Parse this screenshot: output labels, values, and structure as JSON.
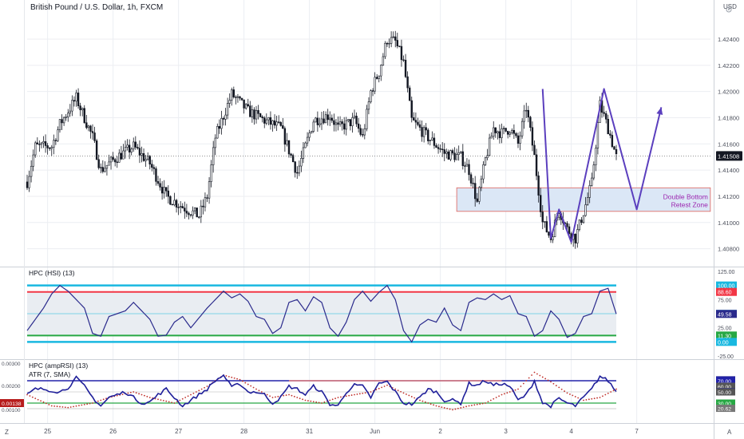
{
  "header": {
    "symbol_title": "British Pound / U.S. Dollar, 1h, FXCM",
    "currency": "USD",
    "corner_letter": "A",
    "left_letter": "Z"
  },
  "annotation": {
    "line1": "Double Bottom",
    "line2": "Retest Zone"
  },
  "colors": {
    "candle": "#131722",
    "bg": "#ffffff",
    "grid": "#eceef2",
    "axis_text": "#4a4e5a",
    "pattern_line": "#5b3fbe",
    "zone_fill": "#dbe7f6",
    "zone_border": "#e0615a",
    "annotation_text": "#9c27b0",
    "hsi_line": "#2a2a8c",
    "hsi_band_outer": "#19b8e0",
    "hsi_band_upper": "#f23645",
    "hsi_band_lower": "#27a844",
    "hsi_mid": "#7fd3e6",
    "amp_line": "#1f1f9a",
    "atr_dots": "#c0302a",
    "last_price_bg": "#131722"
  },
  "chart_data": [
    {
      "id": "price",
      "type": "candlestick",
      "title": "British Pound / U.S. Dollar, 1h, FXCM",
      "ylabel": "USD",
      "x_labels": [
        "25",
        "26",
        "27",
        "28",
        "31",
        "Jun",
        "2",
        "3",
        "4",
        "7"
      ],
      "x_label_pos": [
        2.5,
        10.5,
        18.5,
        26.5,
        34.5,
        42.5,
        50.5,
        58.5,
        66.5,
        74.5
      ],
      "ylim": [
        1.407,
        1.4265
      ],
      "y_ticks": [
        "1.42400",
        "1.42200",
        "1.42000",
        "1.41800",
        "1.41600",
        "1.41400",
        "1.41200",
        "1.41000",
        "1.40800"
      ],
      "last_price": "1.41508",
      "anchors": [
        [
          0,
          1.4131
        ],
        [
          1,
          1.4158
        ],
        [
          3,
          1.4158
        ],
        [
          4,
          1.4175
        ],
        [
          6,
          1.4195
        ],
        [
          8,
          1.4165
        ],
        [
          9,
          1.414
        ],
        [
          11,
          1.415
        ],
        [
          13,
          1.4158
        ],
        [
          15,
          1.4145
        ],
        [
          17,
          1.412
        ],
        [
          19,
          1.4112
        ],
        [
          21,
          1.4105
        ],
        [
          22,
          1.412
        ],
        [
          23,
          1.4165
        ],
        [
          25,
          1.4198
        ],
        [
          27,
          1.4185
        ],
        [
          29,
          1.4178
        ],
        [
          31,
          1.4172
        ],
        [
          32,
          1.4155
        ],
        [
          33,
          1.4138
        ],
        [
          35,
          1.4178
        ],
        [
          37,
          1.4182
        ],
        [
          38,
          1.4172
        ],
        [
          40,
          1.4178
        ],
        [
          41,
          1.4165
        ],
        [
          42,
          1.42
        ],
        [
          43,
          1.4215
        ],
        [
          44,
          1.424
        ],
        [
          45,
          1.4238
        ],
        [
          46,
          1.4222
        ],
        [
          47,
          1.4178
        ],
        [
          49,
          1.4165
        ],
        [
          51,
          1.4153
        ],
        [
          53,
          1.415
        ],
        [
          54,
          1.414
        ],
        [
          55,
          1.4115
        ],
        [
          56,
          1.4148
        ],
        [
          57,
          1.4172
        ],
        [
          58,
          1.4168
        ],
        [
          59,
          1.4172
        ],
        [
          60,
          1.416
        ],
        [
          61,
          1.4188
        ],
        [
          62,
          1.415
        ],
        [
          63,
          1.41
        ],
        [
          64,
          1.4088
        ],
        [
          65,
          1.411
        ],
        [
          66,
          1.4095
        ],
        [
          67,
          1.4088
        ],
        [
          68,
          1.4108
        ],
        [
          69,
          1.413
        ],
        [
          70,
          1.419
        ],
        [
          71,
          1.4172
        ],
        [
          72,
          1.415
        ]
      ]
    },
    {
      "id": "hsi",
      "type": "line",
      "title": "HPC (HSI) (13)",
      "ylim": [
        -25,
        125
      ],
      "y_ticks": [
        "125.00",
        "75.00",
        "25.00",
        "-25.00"
      ],
      "bands": {
        "outer_top": 100,
        "upper": 88.6,
        "mid": 50,
        "lower": 11.3,
        "outer_bottom": 0
      },
      "badges": [
        {
          "label": "100.00",
          "value": 100
        },
        {
          "label": "88.60",
          "value": 88.6
        },
        {
          "label": "50.00",
          "value": 50
        },
        {
          "label": "49.58",
          "value": 49.58
        },
        {
          "label": "11.30",
          "value": 11.3
        },
        {
          "label": "0.00",
          "value": 0
        }
      ],
      "anchors": [
        [
          0,
          20
        ],
        [
          2,
          60
        ],
        [
          3,
          85
        ],
        [
          4,
          100
        ],
        [
          5,
          90
        ],
        [
          7,
          60
        ],
        [
          8,
          15
        ],
        [
          9,
          10
        ],
        [
          10,
          45
        ],
        [
          12,
          55
        ],
        [
          13,
          70
        ],
        [
          14,
          55
        ],
        [
          15,
          40
        ],
        [
          16,
          10
        ],
        [
          17,
          12
        ],
        [
          18,
          35
        ],
        [
          19,
          45
        ],
        [
          20,
          25
        ],
        [
          22,
          60
        ],
        [
          24,
          90
        ],
        [
          25,
          78
        ],
        [
          26,
          85
        ],
        [
          27,
          72
        ],
        [
          28,
          45
        ],
        [
          29,
          40
        ],
        [
          30,
          15
        ],
        [
          31,
          25
        ],
        [
          32,
          70
        ],
        [
          33,
          75
        ],
        [
          34,
          55
        ],
        [
          35,
          80
        ],
        [
          36,
          70
        ],
        [
          37,
          25
        ],
        [
          38,
          10
        ],
        [
          39,
          35
        ],
        [
          40,
          75
        ],
        [
          41,
          90
        ],
        [
          42,
          72
        ],
        [
          43,
          88
        ],
        [
          44,
          100
        ],
        [
          45,
          75
        ],
        [
          46,
          20
        ],
        [
          47,
          0
        ],
        [
          48,
          30
        ],
        [
          49,
          40
        ],
        [
          50,
          35
        ],
        [
          51,
          60
        ],
        [
          52,
          30
        ],
        [
          53,
          20
        ],
        [
          54,
          70
        ],
        [
          55,
          78
        ],
        [
          56,
          75
        ],
        [
          57,
          85
        ],
        [
          58,
          75
        ],
        [
          59,
          82
        ],
        [
          60,
          50
        ],
        [
          61,
          45
        ],
        [
          62,
          10
        ],
        [
          63,
          20
        ],
        [
          64,
          55
        ],
        [
          65,
          40
        ],
        [
          66,
          8
        ],
        [
          67,
          15
        ],
        [
          68,
          45
        ],
        [
          69,
          50
        ],
        [
          70,
          90
        ],
        [
          71,
          95
        ],
        [
          72,
          49.58
        ]
      ]
    },
    {
      "id": "amprsi",
      "type": "line",
      "title": "HPC (ampRSI) (13)",
      "subtitle": "ATR (7, SMA)",
      "ylim": [
        0,
        100
      ],
      "left_ticks": [
        "0.00300",
        "0.00200",
        "0.00100"
      ],
      "atr_badge": "0.00138",
      "bands": {
        "upper": 70,
        "lower": 30,
        "extra_lower": 20
      },
      "badges": [
        {
          "label": "71.59",
          "value": 71.59
        },
        {
          "label": "70.00",
          "value": 70
        },
        {
          "label": "60.00",
          "value": 60
        },
        {
          "label": "50.54",
          "value": 50.54
        },
        {
          "label": "50.00",
          "value": 50
        },
        {
          "label": "30.00",
          "value": 30
        },
        {
          "label": "20.62",
          "value": 20.62
        }
      ],
      "rsi_anchors": [
        [
          0,
          45
        ],
        [
          1,
          55
        ],
        [
          2,
          55
        ],
        [
          4,
          50
        ],
        [
          5,
          58
        ],
        [
          6,
          75
        ],
        [
          7,
          60
        ],
        [
          8,
          40
        ],
        [
          9,
          25
        ],
        [
          10,
          40
        ],
        [
          12,
          50
        ],
        [
          13,
          40
        ],
        [
          14,
          30
        ],
        [
          15,
          32
        ],
        [
          16,
          45
        ],
        [
          17,
          55
        ],
        [
          18,
          40
        ],
        [
          19,
          25
        ],
        [
          20,
          35
        ],
        [
          21,
          45
        ],
        [
          22,
          55
        ],
        [
          23,
          70
        ],
        [
          24,
          80
        ],
        [
          25,
          58
        ],
        [
          26,
          65
        ],
        [
          27,
          50
        ],
        [
          28,
          50
        ],
        [
          29,
          45
        ],
        [
          30,
          30
        ],
        [
          31,
          40
        ],
        [
          32,
          60
        ],
        [
          33,
          55
        ],
        [
          34,
          45
        ],
        [
          35,
          60
        ],
        [
          36,
          50
        ],
        [
          37,
          28
        ],
        [
          38,
          25
        ],
        [
          39,
          50
        ],
        [
          40,
          62
        ],
        [
          41,
          60
        ],
        [
          42,
          40
        ],
        [
          43,
          65
        ],
        [
          44,
          68
        ],
        [
          45,
          50
        ],
        [
          46,
          30
        ],
        [
          47,
          28
        ],
        [
          48,
          40
        ],
        [
          49,
          55
        ],
        [
          50,
          50
        ],
        [
          51,
          35
        ],
        [
          52,
          35
        ],
        [
          53,
          30
        ],
        [
          54,
          65
        ],
        [
          55,
          62
        ],
        [
          56,
          70
        ],
        [
          57,
          62
        ],
        [
          58,
          65
        ],
        [
          59,
          60
        ],
        [
          60,
          35
        ],
        [
          61,
          45
        ],
        [
          62,
          70
        ],
        [
          63,
          30
        ],
        [
          64,
          25
        ],
        [
          65,
          38
        ],
        [
          66,
          30
        ],
        [
          67,
          25
        ],
        [
          68,
          40
        ],
        [
          69,
          55
        ],
        [
          70,
          78
        ],
        [
          71,
          70
        ],
        [
          72,
          50.54
        ]
      ],
      "atr_anchors": [
        [
          0,
          45
        ],
        [
          3,
          25
        ],
        [
          5,
          22
        ],
        [
          8,
          30
        ],
        [
          10,
          40
        ],
        [
          13,
          50
        ],
        [
          15,
          40
        ],
        [
          18,
          30
        ],
        [
          20,
          45
        ],
        [
          22,
          60
        ],
        [
          24,
          80
        ],
        [
          26,
          72
        ],
        [
          28,
          55
        ],
        [
          30,
          40
        ],
        [
          32,
          45
        ],
        [
          34,
          35
        ],
        [
          36,
          30
        ],
        [
          38,
          40
        ],
        [
          40,
          45
        ],
        [
          42,
          50
        ],
        [
          44,
          62
        ],
        [
          46,
          48
        ],
        [
          48,
          35
        ],
        [
          50,
          25
        ],
        [
          52,
          18
        ],
        [
          54,
          25
        ],
        [
          56,
          30
        ],
        [
          58,
          45
        ],
        [
          60,
          55
        ],
        [
          62,
          85
        ],
        [
          64,
          68
        ],
        [
          66,
          48
        ],
        [
          68,
          35
        ],
        [
          70,
          40
        ],
        [
          72,
          55
        ]
      ]
    }
  ],
  "pattern_points_data": [
    [
      63,
      1.4202
    ],
    [
      64,
      1.4088
    ],
    [
      65,
      1.411
    ],
    [
      66.5,
      1.4085
    ],
    [
      70.5,
      1.4202
    ],
    [
      74.5,
      1.411
    ],
    [
      77.5,
      1.4188
    ]
  ],
  "pattern_arrow_tip": [
    77.5,
    1.4188
  ]
}
